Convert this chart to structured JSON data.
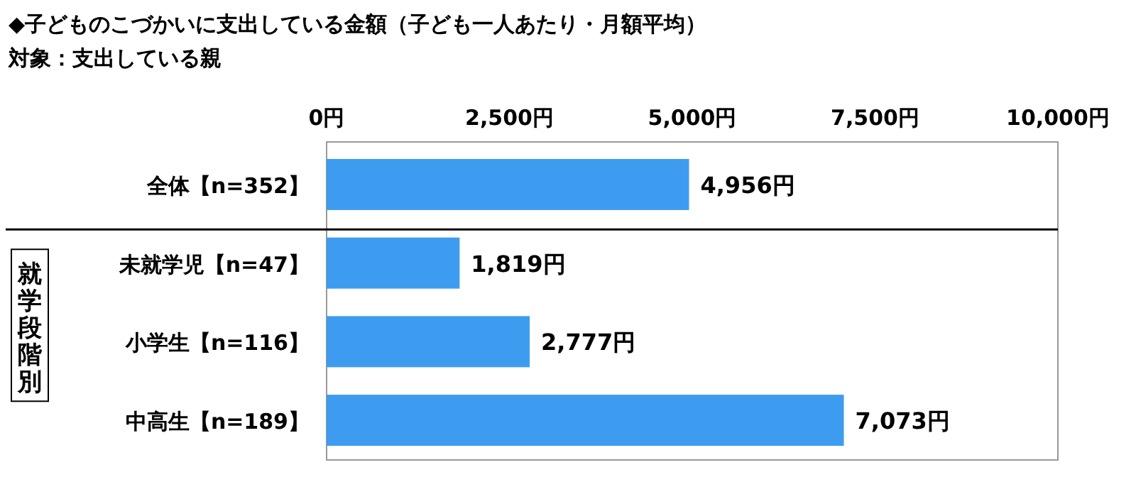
{
  "chart_data": {
    "type": "bar",
    "orientation": "horizontal",
    "title": "◆子どものこづかいに支出している金額（子ども一人あたり・月額平均）",
    "subtitle": "対象：支出している親",
    "categories": [
      "全体【n=352】",
      "未就学児【n=47】",
      "小学生【n=116】",
      "中高生【n=189】"
    ],
    "values": [
      4956,
      1819,
      2777,
      7073
    ],
    "value_labels": [
      "4,956円",
      "1,819円",
      "2,777円",
      "7,073円"
    ],
    "color": "#3d9cf0",
    "xlim": [
      0,
      10000
    ],
    "xticks": [
      {
        "value": 0,
        "label": "0円"
      },
      {
        "value": 2500,
        "label": "2,500円"
      },
      {
        "value": 5000,
        "label": "5,000円"
      },
      {
        "value": 7500,
        "label": "7,500円"
      },
      {
        "value": 10000,
        "label": "10,000円"
      }
    ],
    "annotations": [
      "就学段階別"
    ],
    "grid": false
  }
}
